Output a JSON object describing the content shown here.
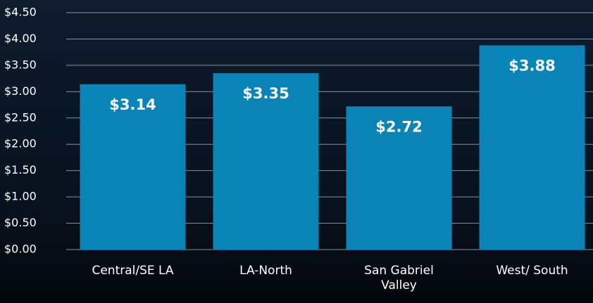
{
  "chart_data": {
    "type": "bar",
    "categories": [
      "Central/SE LA",
      "LA-North",
      "San Gabriel Valley",
      "West/ South"
    ],
    "values": [
      3.14,
      3.35,
      2.72,
      3.88
    ],
    "value_labels": [
      "$3.14",
      "$3.35",
      "$2.72",
      "$3.88"
    ],
    "color": "#0a84b6",
    "ylim": [
      0,
      4.5
    ],
    "yticks": [
      {
        "value": 0,
        "label": "$0.00"
      },
      {
        "value": 0.5,
        "label": "$0.50"
      },
      {
        "value": 1,
        "label": "$1.00"
      },
      {
        "value": 1.5,
        "label": "$1.50"
      },
      {
        "value": 2,
        "label": "$2.00"
      },
      {
        "value": 2.5,
        "label": "$2.50"
      },
      {
        "value": 3,
        "label": "$3.00"
      },
      {
        "value": 3.5,
        "label": "$3.50"
      },
      {
        "value": 4,
        "label": "$4.00"
      },
      {
        "value": 4.5,
        "label": "$4.50"
      }
    ],
    "grid": true
  }
}
